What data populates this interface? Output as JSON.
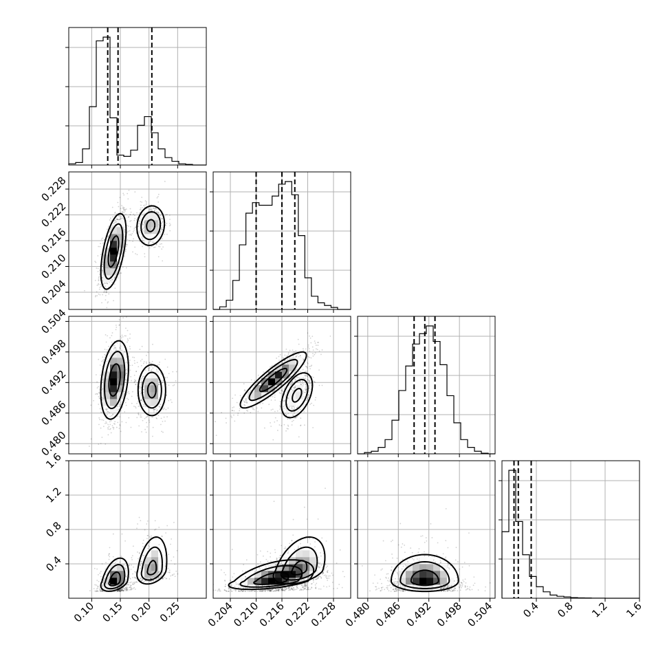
{
  "chart_data": {
    "type": "corner",
    "parameters": 4,
    "axes": [
      {
        "range": [
          0.06,
          0.3
        ],
        "ticks": [
          0.1,
          0.15,
          0.2,
          0.25
        ],
        "tick_labels": [
          "0.10",
          "0.15",
          "0.20",
          "0.25"
        ]
      },
      {
        "range": [
          0.2,
          0.232
        ],
        "ticks": [
          0.204,
          0.21,
          0.216,
          0.222,
          0.228
        ],
        "tick_labels": [
          "0.204",
          "0.210",
          "0.216",
          "0.222",
          "0.228"
        ]
      },
      {
        "range": [
          0.478,
          0.505
        ],
        "ticks": [
          0.48,
          0.486,
          0.492,
          0.498,
          0.504
        ],
        "tick_labels": [
          "0.480",
          "0.486",
          "0.492",
          "0.498",
          "0.504"
        ]
      },
      {
        "range": [
          0.0,
          1.6
        ],
        "ticks": [
          0.4,
          0.8,
          1.2,
          1.6
        ],
        "tick_labels": [
          "0.4",
          "0.8",
          "1.2",
          "1.6"
        ]
      }
    ],
    "histograms": [
      {
        "edges_range": [
          0.06,
          0.3
        ],
        "counts": [
          0.01,
          0.02,
          0.13,
          0.47,
          1.0,
          1.03,
          0.38,
          0.08,
          0.07,
          0.12,
          0.32,
          0.39,
          0.26,
          0.13,
          0.06,
          0.03,
          0.01,
          0.005,
          0,
          0
        ],
        "quantiles": [
          0.128,
          0.146,
          0.205
        ]
      },
      {
        "edges_range": [
          0.2,
          0.232
        ],
        "counts": [
          0,
          0.02,
          0.07,
          0.22,
          0.49,
          0.73,
          0.81,
          0.79,
          0.79,
          0.86,
          0.95,
          0.97,
          0.87,
          0.56,
          0.24,
          0.1,
          0.05,
          0.03,
          0.015,
          0,
          0
        ],
        "quantiles": [
          0.21,
          0.216,
          0.219
        ]
      },
      {
        "edges_range": [
          0.478,
          0.505
        ],
        "counts": [
          0,
          0.01,
          0.02,
          0.05,
          0.11,
          0.26,
          0.49,
          0.68,
          0.85,
          0.93,
          0.99,
          0.87,
          0.69,
          0.45,
          0.24,
          0.11,
          0.05,
          0.02,
          0.005,
          0
        ],
        "quantiles": [
          0.4891,
          0.4912,
          0.4932
        ]
      },
      {
        "edges_range": [
          0.0,
          1.6
        ],
        "counts": [
          0.52,
          1.0,
          0.6,
          0.34,
          0.17,
          0.09,
          0.05,
          0.025,
          0.015,
          0.01,
          0.005,
          0.003,
          0.002,
          0.001,
          0.001,
          0,
          0,
          0,
          0,
          0
        ],
        "quantiles": [
          0.14,
          0.19,
          0.34
        ]
      }
    ],
    "density_panels": [
      {
        "x_param": 0,
        "y_param": 1,
        "modes": [
          {
            "cx": 0.138,
            "cy": 0.2135,
            "sx": 0.01,
            "sy": 0.004,
            "rho": 0.55,
            "weight": 0.62
          },
          {
            "cx": 0.203,
            "cy": 0.2195,
            "sx": 0.012,
            "sy": 0.0023,
            "rho": 0.1,
            "weight": 0.38
          }
        ]
      },
      {
        "x_param": 0,
        "y_param": 2,
        "modes": [
          {
            "cx": 0.14,
            "cy": 0.4925,
            "sx": 0.011,
            "sy": 0.0035,
            "rho": 0.3,
            "weight": 0.62
          },
          {
            "cx": 0.205,
            "cy": 0.4905,
            "sx": 0.012,
            "sy": 0.0025,
            "rho": 0.0,
            "weight": 0.38
          }
        ]
      },
      {
        "x_param": 1,
        "y_param": 2,
        "modes": [
          {
            "cx": 0.214,
            "cy": 0.4925,
            "sx": 0.0035,
            "sy": 0.0025,
            "rho": 0.88,
            "weight": 0.62
          },
          {
            "cx": 0.2195,
            "cy": 0.4895,
            "sx": 0.0018,
            "sy": 0.0022,
            "rho": 0.45,
            "weight": 0.38
          }
        ]
      },
      {
        "x_param": 0,
        "y_param": 3,
        "modes": [
          {
            "cx": 0.14,
            "cy": 0.19,
            "sx": 0.011,
            "sy": 0.09,
            "rho": 0.4,
            "weight": 0.62
          },
          {
            "cx": 0.205,
            "cy": 0.32,
            "sx": 0.013,
            "sy": 0.14,
            "rho": 0.3,
            "weight": 0.38
          }
        ]
      },
      {
        "x_param": 1,
        "y_param": 3,
        "modes": [
          {
            "cx": 0.2135,
            "cy": 0.2,
            "sx": 0.0045,
            "sy": 0.08,
            "rho": 0.5,
            "weight": 0.62
          },
          {
            "cx": 0.22,
            "cy": 0.32,
            "sx": 0.003,
            "sy": 0.14,
            "rho": 0.4,
            "weight": 0.38
          }
        ]
      },
      {
        "x_param": 2,
        "y_param": 3,
        "modes": [
          {
            "cx": 0.4912,
            "cy": 0.2,
            "sx": 0.003,
            "sy": 0.1,
            "rho": 0.0,
            "weight": 1.0
          }
        ]
      }
    ]
  }
}
